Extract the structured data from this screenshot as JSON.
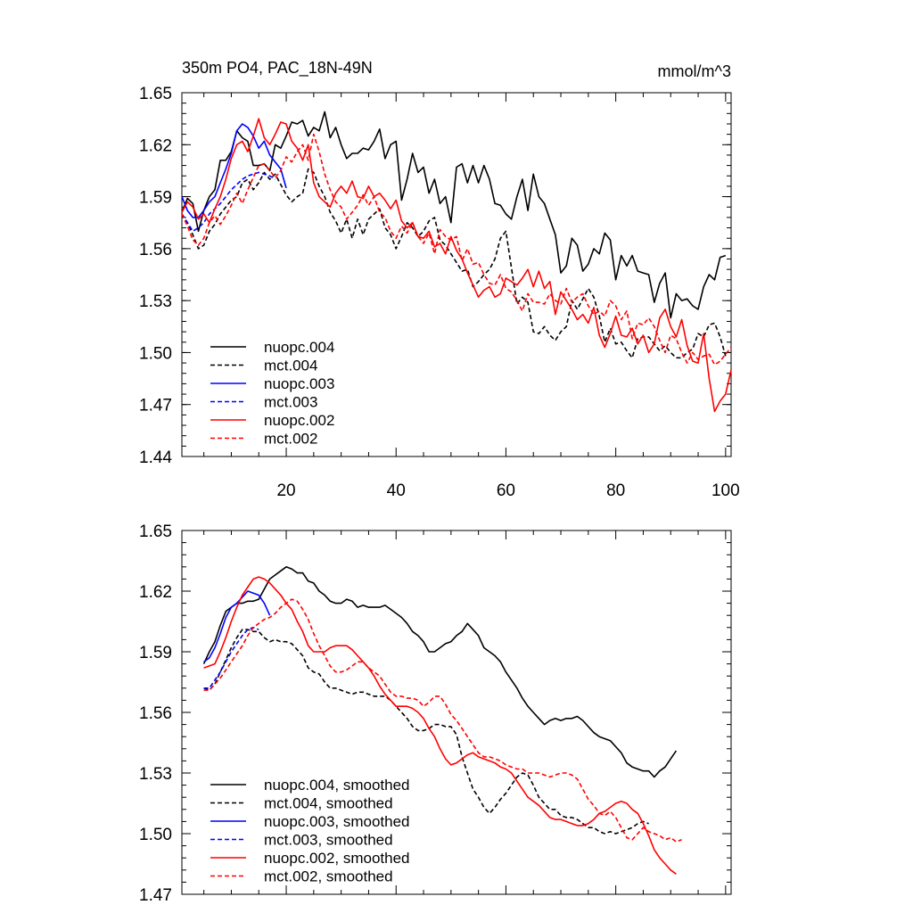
{
  "chart_data": [
    {
      "type": "line",
      "title": "350m PO4, PAC_18N-49N",
      "units": "mmol/m^3",
      "xlim": [
        1,
        101
      ],
      "ylim": [
        1.44,
        1.65
      ],
      "xticks": [
        20,
        40,
        60,
        80,
        100
      ],
      "yticks": [
        1.44,
        1.47,
        1.5,
        1.53,
        1.56,
        1.59,
        1.62,
        1.65
      ],
      "ytick_labels": [
        "1.44",
        "1.47",
        "1.50",
        "1.53",
        "1.56",
        "1.59",
        "1.62",
        "1.65"
      ],
      "xtick_labels": [
        "20",
        "40",
        "60",
        "80",
        "100"
      ],
      "legend_position": "bottom-left",
      "series": [
        {
          "name": "nuopc.004",
          "color": "#000000",
          "dash": "solid",
          "x_start": 1,
          "values": [
            1.581,
            1.589,
            1.586,
            1.57,
            1.582,
            1.59,
            1.594,
            1.611,
            1.611,
            1.616,
            1.628,
            1.624,
            1.622,
            1.608,
            1.608,
            1.609,
            1.605,
            1.62,
            1.618,
            1.625,
            1.633,
            1.632,
            1.634,
            1.625,
            1.63,
            1.628,
            1.639,
            1.624,
            1.63,
            1.62,
            1.612,
            1.615,
            1.615,
            1.618,
            1.617,
            1.622,
            1.629,
            1.612,
            1.62,
            1.622,
            1.588,
            1.6,
            1.615,
            1.604,
            1.607,
            1.592,
            1.6,
            1.586,
            1.59,
            1.575,
            1.607,
            1.609,
            1.598,
            1.608,
            1.598,
            1.608,
            1.6,
            1.586,
            1.585,
            1.58,
            1.577,
            1.59,
            1.6,
            1.582,
            1.603,
            1.59,
            1.586,
            1.577,
            1.568,
            1.546,
            1.55,
            1.566,
            1.562,
            1.547,
            1.551,
            1.56,
            1.557,
            1.569,
            1.565,
            1.542,
            1.556,
            1.55,
            1.556,
            1.547,
            1.546,
            1.545,
            1.529,
            1.54,
            1.546,
            1.52,
            1.534,
            1.53,
            1.531,
            1.527,
            1.525,
            1.538,
            1.545,
            1.542,
            1.555,
            1.556
          ]
        },
        {
          "name": "mct.004",
          "color": "#000000",
          "dash": "dashed",
          "x_start": 1,
          "values": [
            1.58,
            1.575,
            1.568,
            1.56,
            1.562,
            1.57,
            1.574,
            1.58,
            1.584,
            1.588,
            1.59,
            1.598,
            1.6,
            1.594,
            1.598,
            1.604,
            1.6,
            1.603,
            1.597,
            1.591,
            1.587,
            1.59,
            1.592,
            1.606,
            1.604,
            1.596,
            1.59,
            1.581,
            1.576,
            1.569,
            1.577,
            1.566,
            1.577,
            1.568,
            1.577,
            1.58,
            1.583,
            1.572,
            1.568,
            1.56,
            1.567,
            1.575,
            1.572,
            1.567,
            1.57,
            1.576,
            1.578,
            1.565,
            1.562,
            1.557,
            1.552,
            1.547,
            1.548,
            1.538,
            1.541,
            1.545,
            1.548,
            1.554,
            1.566,
            1.57,
            1.549,
            1.528,
            1.532,
            1.529,
            1.512,
            1.511,
            1.515,
            1.51,
            1.507,
            1.512,
            1.515,
            1.53,
            1.525,
            1.531,
            1.537,
            1.532,
            1.521,
            1.506,
            1.514,
            1.505,
            1.506,
            1.501,
            1.497,
            1.508,
            1.509,
            1.509,
            1.505,
            1.501,
            1.504,
            1.5,
            1.497,
            1.497,
            1.5,
            1.502,
            1.511,
            1.509,
            1.516,
            1.517,
            1.509,
            1.498
          ]
        },
        {
          "name": "nuopc.003",
          "color": "#0000ff",
          "dash": "solid",
          "x_start": 1,
          "values": [
            1.59,
            1.582,
            1.578,
            1.578,
            1.582,
            1.587,
            1.59,
            1.598,
            1.606,
            1.615,
            1.628,
            1.632,
            1.63,
            1.625,
            1.618,
            1.622,
            1.614,
            1.61,
            1.606,
            1.595
          ]
        },
        {
          "name": "mct.003",
          "color": "#0000ff",
          "dash": "dashed",
          "x_start": 1,
          "values": [
            1.58,
            1.575,
            1.57,
            1.572,
            1.575,
            1.58,
            1.583,
            1.586,
            1.59,
            1.594,
            1.597,
            1.6,
            1.602,
            1.603,
            1.604,
            1.603,
            1.602,
            1.6
          ]
        },
        {
          "name": "nuopc.002",
          "color": "#ff0000",
          "dash": "solid",
          "x_start": 1,
          "values": [
            1.581,
            1.587,
            1.584,
            1.577,
            1.58,
            1.575,
            1.583,
            1.59,
            1.6,
            1.612,
            1.62,
            1.622,
            1.616,
            1.625,
            1.635,
            1.624,
            1.62,
            1.626,
            1.633,
            1.632,
            1.622,
            1.618,
            1.611,
            1.62,
            1.598,
            1.59,
            1.587,
            1.584,
            1.592,
            1.596,
            1.592,
            1.599,
            1.59,
            1.589,
            1.596,
            1.59,
            1.592,
            1.588,
            1.583,
            1.588,
            1.576,
            1.572,
            1.575,
            1.567,
            1.566,
            1.57,
            1.561,
            1.563,
            1.557,
            1.567,
            1.559,
            1.554,
            1.546,
            1.539,
            1.532,
            1.536,
            1.538,
            1.532,
            1.534,
            1.543,
            1.541,
            1.539,
            1.543,
            1.548,
            1.538,
            1.547,
            1.537,
            1.541,
            1.522,
            1.535,
            1.53,
            1.525,
            1.519,
            1.522,
            1.517,
            1.526,
            1.51,
            1.503,
            1.511,
            1.521,
            1.51,
            1.509,
            1.514,
            1.505,
            1.51,
            1.5,
            1.505,
            1.52,
            1.525,
            1.515,
            1.509,
            1.519,
            1.504,
            1.495,
            1.494,
            1.511,
            1.485,
            1.466,
            1.472,
            1.476,
            1.49
          ]
        },
        {
          "name": "mct.002",
          "color": "#ff0000",
          "dash": "dashed",
          "x_start": 1,
          "values": [
            1.58,
            1.573,
            1.565,
            1.562,
            1.566,
            1.575,
            1.579,
            1.574,
            1.579,
            1.585,
            1.592,
            1.586,
            1.594,
            1.601,
            1.608,
            1.609,
            1.605,
            1.601,
            1.605,
            1.613,
            1.61,
            1.616,
            1.62,
            1.611,
            1.626,
            1.616,
            1.603,
            1.594,
            1.587,
            1.584,
            1.577,
            1.581,
            1.585,
            1.591,
            1.585,
            1.59,
            1.581,
            1.578,
            1.57,
            1.566,
            1.573,
            1.569,
            1.575,
            1.567,
            1.563,
            1.569,
            1.557,
            1.571,
            1.567,
            1.565,
            1.567,
            1.553,
            1.56,
            1.551,
            1.552,
            1.545,
            1.54,
            1.539,
            1.545,
            1.537,
            1.535,
            1.53,
            1.524,
            1.534,
            1.529,
            1.529,
            1.528,
            1.534,
            1.53,
            1.528,
            1.537,
            1.529,
            1.532,
            1.534,
            1.527,
            1.522,
            1.524,
            1.521,
            1.53,
            1.527,
            1.519,
            1.524,
            1.508,
            1.517,
            1.516,
            1.52,
            1.515,
            1.507,
            1.5,
            1.51,
            1.508,
            1.5,
            1.494,
            1.5,
            1.496,
            1.498,
            1.499,
            1.493,
            1.495,
            1.499,
            1.503
          ]
        }
      ]
    },
    {
      "type": "line",
      "xlim": [
        1,
        101
      ],
      "ylim": [
        1.47,
        1.65
      ],
      "xticks": [
        20,
        40,
        60,
        80,
        100
      ],
      "yticks": [
        1.47,
        1.5,
        1.53,
        1.56,
        1.59,
        1.62,
        1.65
      ],
      "ytick_labels": [
        "1.47",
        "1.50",
        "1.53",
        "1.56",
        "1.59",
        "1.62",
        "1.65"
      ],
      "legend_position": "bottom-left",
      "series": [
        {
          "name": "nuopc.004, smoothed",
          "color": "#000000",
          "dash": "solid",
          "x_start": 5,
          "values": [
            1.584,
            1.59,
            1.595,
            1.603,
            1.61,
            1.612,
            1.614,
            1.614,
            1.615,
            1.615,
            1.616,
            1.621,
            1.626,
            1.628,
            1.63,
            1.632,
            1.631,
            1.629,
            1.629,
            1.625,
            1.624,
            1.62,
            1.618,
            1.615,
            1.614,
            1.614,
            1.616,
            1.615,
            1.612,
            1.613,
            1.612,
            1.612,
            1.612,
            1.613,
            1.611,
            1.609,
            1.607,
            1.604,
            1.6,
            1.598,
            1.595,
            1.59,
            1.59,
            1.592,
            1.594,
            1.595,
            1.598,
            1.6,
            1.604,
            1.601,
            1.598,
            1.592,
            1.59,
            1.588,
            1.585,
            1.58,
            1.576,
            1.572,
            1.567,
            1.563,
            1.56,
            1.557,
            1.554,
            1.556,
            1.557,
            1.556,
            1.557,
            1.557,
            1.558,
            1.556,
            1.553,
            1.55,
            1.548,
            1.547,
            1.546,
            1.543,
            1.54,
            1.535,
            1.533,
            1.532,
            1.531,
            1.531,
            1.528,
            1.531,
            1.533,
            1.537,
            1.541
          ]
        },
        {
          "name": "mct.004, smoothed",
          "color": "#000000",
          "dash": "dashed",
          "x_start": 5,
          "values": [
            1.572,
            1.571,
            1.574,
            1.58,
            1.586,
            1.592,
            1.597,
            1.601,
            1.601,
            1.6,
            1.6,
            1.597,
            1.595,
            1.596,
            1.595,
            1.595,
            1.594,
            1.591,
            1.588,
            1.582,
            1.58,
            1.579,
            1.575,
            1.572,
            1.572,
            1.571,
            1.57,
            1.569,
            1.57,
            1.57,
            1.569,
            1.568,
            1.568,
            1.568,
            1.566,
            1.563,
            1.56,
            1.557,
            1.553,
            1.551,
            1.551,
            1.552,
            1.554,
            1.554,
            1.553,
            1.553,
            1.549,
            1.538,
            1.53,
            1.522,
            1.518,
            1.513,
            1.51,
            1.513,
            1.517,
            1.52,
            1.524,
            1.528,
            1.53,
            1.529,
            1.524,
            1.518,
            1.515,
            1.512,
            1.512,
            1.509,
            1.508,
            1.508,
            1.507,
            1.505,
            1.503,
            1.503,
            1.501,
            1.5,
            1.501,
            1.5,
            1.501,
            1.502,
            1.503,
            1.505,
            1.506,
            1.505
          ]
        },
        {
          "name": "nuopc.003, smoothed",
          "color": "#0000ff",
          "dash": "solid",
          "x_start": 5,
          "values": [
            1.585,
            1.587,
            1.592,
            1.599,
            1.607,
            1.612,
            1.614,
            1.617,
            1.62,
            1.619,
            1.618,
            1.614,
            1.608
          ]
        },
        {
          "name": "mct.003, smoothed",
          "color": "#0000ff",
          "dash": "dashed",
          "x_start": 5,
          "values": [
            1.572,
            1.572,
            1.576,
            1.58,
            1.585,
            1.59,
            1.594,
            1.598,
            1.601,
            1.602,
            1.601
          ]
        },
        {
          "name": "nuopc.002, smoothed",
          "color": "#ff0000",
          "dash": "solid",
          "x_start": 5,
          "values": [
            1.582,
            1.583,
            1.584,
            1.59,
            1.597,
            1.605,
            1.612,
            1.618,
            1.622,
            1.626,
            1.627,
            1.626,
            1.624,
            1.621,
            1.618,
            1.614,
            1.611,
            1.605,
            1.6,
            1.593,
            1.59,
            1.59,
            1.59,
            1.592,
            1.593,
            1.593,
            1.593,
            1.591,
            1.588,
            1.585,
            1.582,
            1.578,
            1.573,
            1.569,
            1.566,
            1.563,
            1.563,
            1.563,
            1.562,
            1.56,
            1.557,
            1.552,
            1.548,
            1.542,
            1.537,
            1.534,
            1.535,
            1.537,
            1.539,
            1.54,
            1.538,
            1.537,
            1.536,
            1.535,
            1.533,
            1.532,
            1.53,
            1.526,
            1.522,
            1.518,
            1.516,
            1.514,
            1.511,
            1.508,
            1.507,
            1.507,
            1.506,
            1.505,
            1.504,
            1.504,
            1.505,
            1.507,
            1.51,
            1.511,
            1.513,
            1.515,
            1.516,
            1.515,
            1.512,
            1.51,
            1.505,
            1.499,
            1.492,
            1.488,
            1.485,
            1.482,
            1.48
          ]
        },
        {
          "name": "mct.002, smoothed",
          "color": "#ff0000",
          "dash": "dashed",
          "x_start": 5,
          "values": [
            1.571,
            1.571,
            1.574,
            1.577,
            1.581,
            1.585,
            1.589,
            1.593,
            1.598,
            1.602,
            1.604,
            1.606,
            1.607,
            1.609,
            1.612,
            1.614,
            1.616,
            1.615,
            1.611,
            1.606,
            1.599,
            1.593,
            1.588,
            1.583,
            1.58,
            1.58,
            1.581,
            1.583,
            1.585,
            1.585,
            1.582,
            1.58,
            1.578,
            1.574,
            1.57,
            1.568,
            1.568,
            1.567,
            1.567,
            1.566,
            1.563,
            1.565,
            1.568,
            1.568,
            1.564,
            1.559,
            1.556,
            1.552,
            1.548,
            1.544,
            1.54,
            1.538,
            1.538,
            1.537,
            1.536,
            1.534,
            1.533,
            1.532,
            1.532,
            1.53,
            1.53,
            1.53,
            1.529,
            1.528,
            1.529,
            1.53,
            1.53,
            1.529,
            1.527,
            1.522,
            1.517,
            1.514,
            1.51,
            1.509,
            1.511,
            1.508,
            1.503,
            1.498,
            1.497,
            1.5,
            1.503,
            1.501,
            1.5,
            1.499,
            1.497,
            1.498,
            1.496,
            1.497
          ]
        }
      ]
    }
  ]
}
